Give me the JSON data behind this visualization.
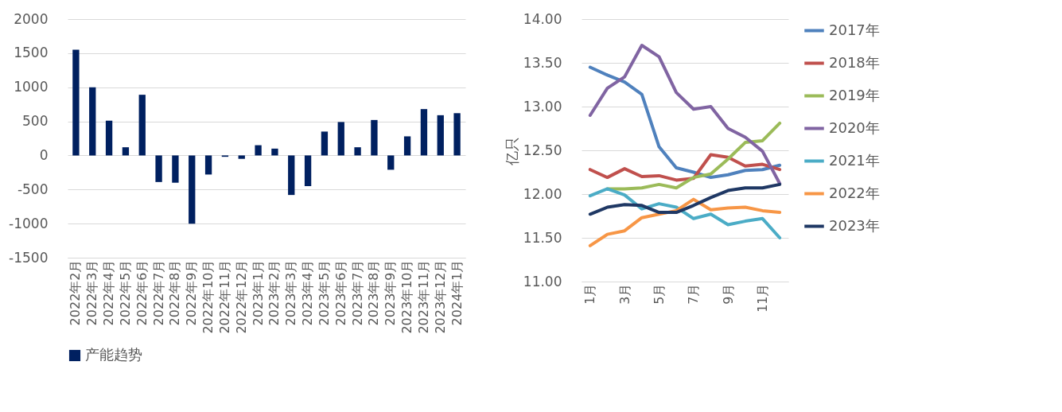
{
  "chart_data": [
    {
      "type": "bar",
      "categories": [
        "2022年2月",
        "2022年3月",
        "2022年4月",
        "2022年5月",
        "2022年6月",
        "2022年7月",
        "2022年8月",
        "2022年9月",
        "2022年10月",
        "2022年11月",
        "2022年12月",
        "2023年1月",
        "2023年2月",
        "2023年3月",
        "2023年4月",
        "2023年5月",
        "2023年6月",
        "2023年7月",
        "2023年8月",
        "2023年9月",
        "2023年10月",
        "2023年11月",
        "2023年12月",
        "2024年1月"
      ],
      "series": [
        {
          "name": "产能趋势",
          "color": "#002060",
          "values": [
            1550,
            1000,
            510,
            120,
            890,
            -390,
            -400,
            -1000,
            -280,
            -20,
            -50,
            150,
            100,
            -580,
            -450,
            350,
            490,
            120,
            520,
            -210,
            280,
            680,
            590,
            620
          ]
        }
      ],
      "ylim": [
        -1500,
        2000
      ],
      "yticks": [
        -1500,
        -1000,
        -500,
        0,
        500,
        1000,
        1500,
        2000
      ],
      "grid": "y",
      "legend": "bottom"
    },
    {
      "type": "line",
      "ylabel": "亿只",
      "categories": [
        "1月",
        null,
        "3月",
        null,
        "5月",
        null,
        "7月",
        null,
        "9月",
        null,
        "11月",
        null
      ],
      "series": [
        {
          "name": "2017年",
          "color": "#4f81bd",
          "values": [
            13.45,
            13.36,
            13.28,
            13.14,
            12.54,
            12.3,
            12.25,
            12.19,
            12.22,
            12.27,
            12.28,
            12.33
          ]
        },
        {
          "name": "2018年",
          "color": "#c0504d",
          "values": [
            12.28,
            12.19,
            12.29,
            12.2,
            12.21,
            12.16,
            12.18,
            12.45,
            12.42,
            12.32,
            12.34,
            12.28
          ]
        },
        {
          "name": "2019年",
          "color": "#9bbb59",
          "values": [
            null,
            12.06,
            12.06,
            12.07,
            12.11,
            12.07,
            12.19,
            12.23,
            12.4,
            12.59,
            12.61,
            12.81
          ]
        },
        {
          "name": "2020年",
          "color": "#8064a2",
          "values": [
            12.9,
            13.21,
            13.34,
            13.7,
            13.57,
            13.16,
            12.97,
            13.0,
            12.75,
            12.65,
            12.49,
            12.12
          ]
        },
        {
          "name": "2021年",
          "color": "#4bacc6",
          "values": [
            11.98,
            12.06,
            11.99,
            11.83,
            11.89,
            11.85,
            11.72,
            11.77,
            11.65,
            11.69,
            11.72,
            11.5
          ]
        },
        {
          "name": "2022年",
          "color": "#f79646",
          "values": [
            11.41,
            11.54,
            11.58,
            11.73,
            11.77,
            11.81,
            11.94,
            11.82,
            11.84,
            11.85,
            11.81,
            11.79
          ]
        },
        {
          "name": "2023年",
          "color": "#1f3864",
          "values": [
            11.77,
            11.85,
            11.88,
            11.87,
            11.79,
            11.79,
            11.87,
            11.96,
            12.04,
            12.07,
            12.07,
            12.11
          ]
        }
      ],
      "ylim": [
        11.0,
        14.0
      ],
      "yticks": [
        {
          "value": 11.0,
          "label": "11.00"
        },
        {
          "value": 11.5,
          "label": "11.50"
        },
        {
          "value": 12.0,
          "label": "12.00"
        },
        {
          "value": 12.5,
          "label": "12.50"
        },
        {
          "value": 13.0,
          "label": "13.00"
        },
        {
          "value": 13.5,
          "label": "13.50"
        },
        {
          "value": 14.0,
          "label": "14.00"
        }
      ],
      "grid": "y",
      "legend": "right",
      "line_style": "solid",
      "marker": "none"
    }
  ]
}
